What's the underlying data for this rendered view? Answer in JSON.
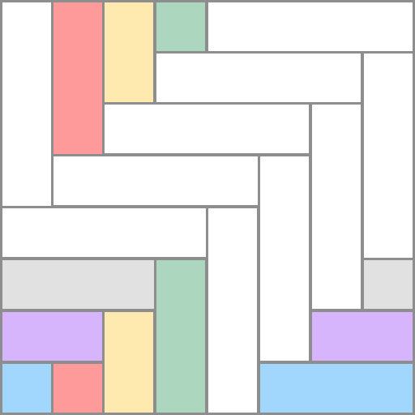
{
  "palette": {
    "white": "#ffffff",
    "red": "#fe9a9a",
    "yellow": "#fee9af",
    "green": "#acd7be",
    "gray": "#e1e1e1",
    "purple": "#d7b5fd",
    "blue": "#a2d7fd"
  },
  "pieces": [
    {
      "id": "v-white-1",
      "color": "white",
      "orientation": "vertical"
    },
    {
      "id": "v-red-1",
      "color": "red",
      "orientation": "vertical"
    },
    {
      "id": "v-yellow-1",
      "color": "yellow",
      "orientation": "vertical"
    },
    {
      "id": "v-green-1",
      "color": "green",
      "orientation": "vertical"
    },
    {
      "id": "h-white-1",
      "color": "white",
      "orientation": "horizontal"
    },
    {
      "id": "h-white-2",
      "color": "white",
      "orientation": "horizontal"
    },
    {
      "id": "v-white-2",
      "color": "white",
      "orientation": "vertical"
    },
    {
      "id": "h-white-3",
      "color": "white",
      "orientation": "horizontal"
    },
    {
      "id": "v-white-3",
      "color": "white",
      "orientation": "vertical"
    },
    {
      "id": "h-white-4",
      "color": "white",
      "orientation": "horizontal"
    },
    {
      "id": "v-white-4",
      "color": "white",
      "orientation": "vertical"
    },
    {
      "id": "h-white-5",
      "color": "white",
      "orientation": "horizontal"
    },
    {
      "id": "v-white-5",
      "color": "white",
      "orientation": "vertical"
    },
    {
      "id": "h-gray-1",
      "color": "gray",
      "orientation": "horizontal"
    },
    {
      "id": "v-green-2",
      "color": "green",
      "orientation": "vertical"
    },
    {
      "id": "s-gray-2",
      "color": "gray",
      "orientation": "square"
    },
    {
      "id": "h-purple-1",
      "color": "purple",
      "orientation": "horizontal"
    },
    {
      "id": "v-yellow-2",
      "color": "yellow",
      "orientation": "vertical"
    },
    {
      "id": "h-purple-2",
      "color": "purple",
      "orientation": "horizontal"
    },
    {
      "id": "s-blue-1",
      "color": "blue",
      "orientation": "square"
    },
    {
      "id": "s-red-2",
      "color": "red",
      "orientation": "square"
    },
    {
      "id": "h-blue-2",
      "color": "blue",
      "orientation": "horizontal"
    }
  ]
}
